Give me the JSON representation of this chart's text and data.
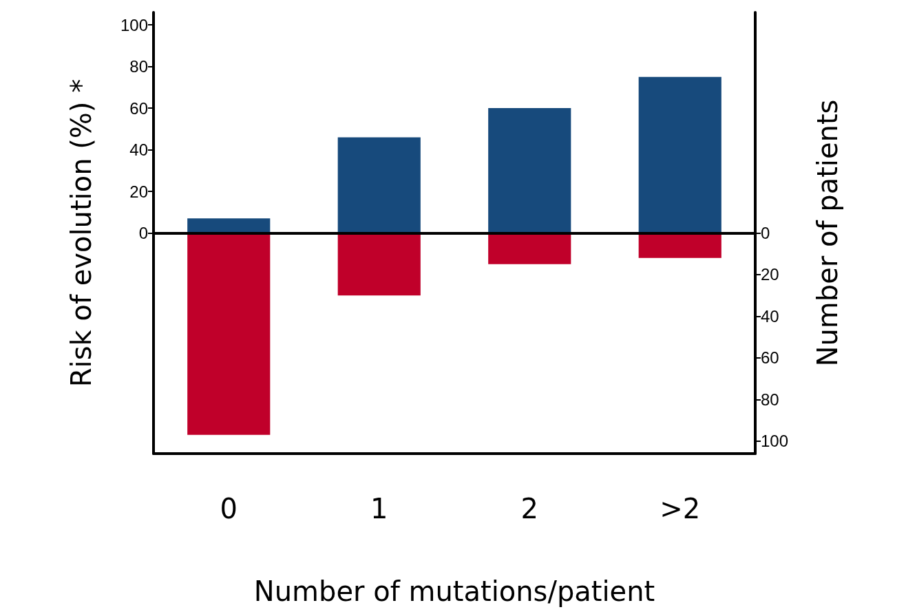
{
  "chart_data": {
    "type": "bar",
    "xlabel": "Number of mutations/patient",
    "ylabel": "Risk of evolution (%) *",
    "y2label": "Number of patients",
    "categories": [
      "0",
      "1",
      "2",
      ">2"
    ],
    "series": [
      {
        "color": "#174a7c",
        "values": [
          7,
          46,
          60,
          75
        ]
      },
      {
        "color": "#c0002a",
        "values": [
          97,
          30,
          15,
          12
        ],
        "axis": "y2"
      }
    ],
    "ylim": [
      -106,
      106
    ],
    "yticks": [
      0,
      20,
      40,
      60,
      80,
      100
    ],
    "y2lim": [
      106,
      -106
    ],
    "y2ticks": [
      0,
      20,
      40,
      60,
      80,
      100
    ],
    "ref_lines": [
      {
        "axis": "y",
        "value": 0,
        "color": "#000000"
      }
    ],
    "grid": false,
    "stacked": true
  }
}
